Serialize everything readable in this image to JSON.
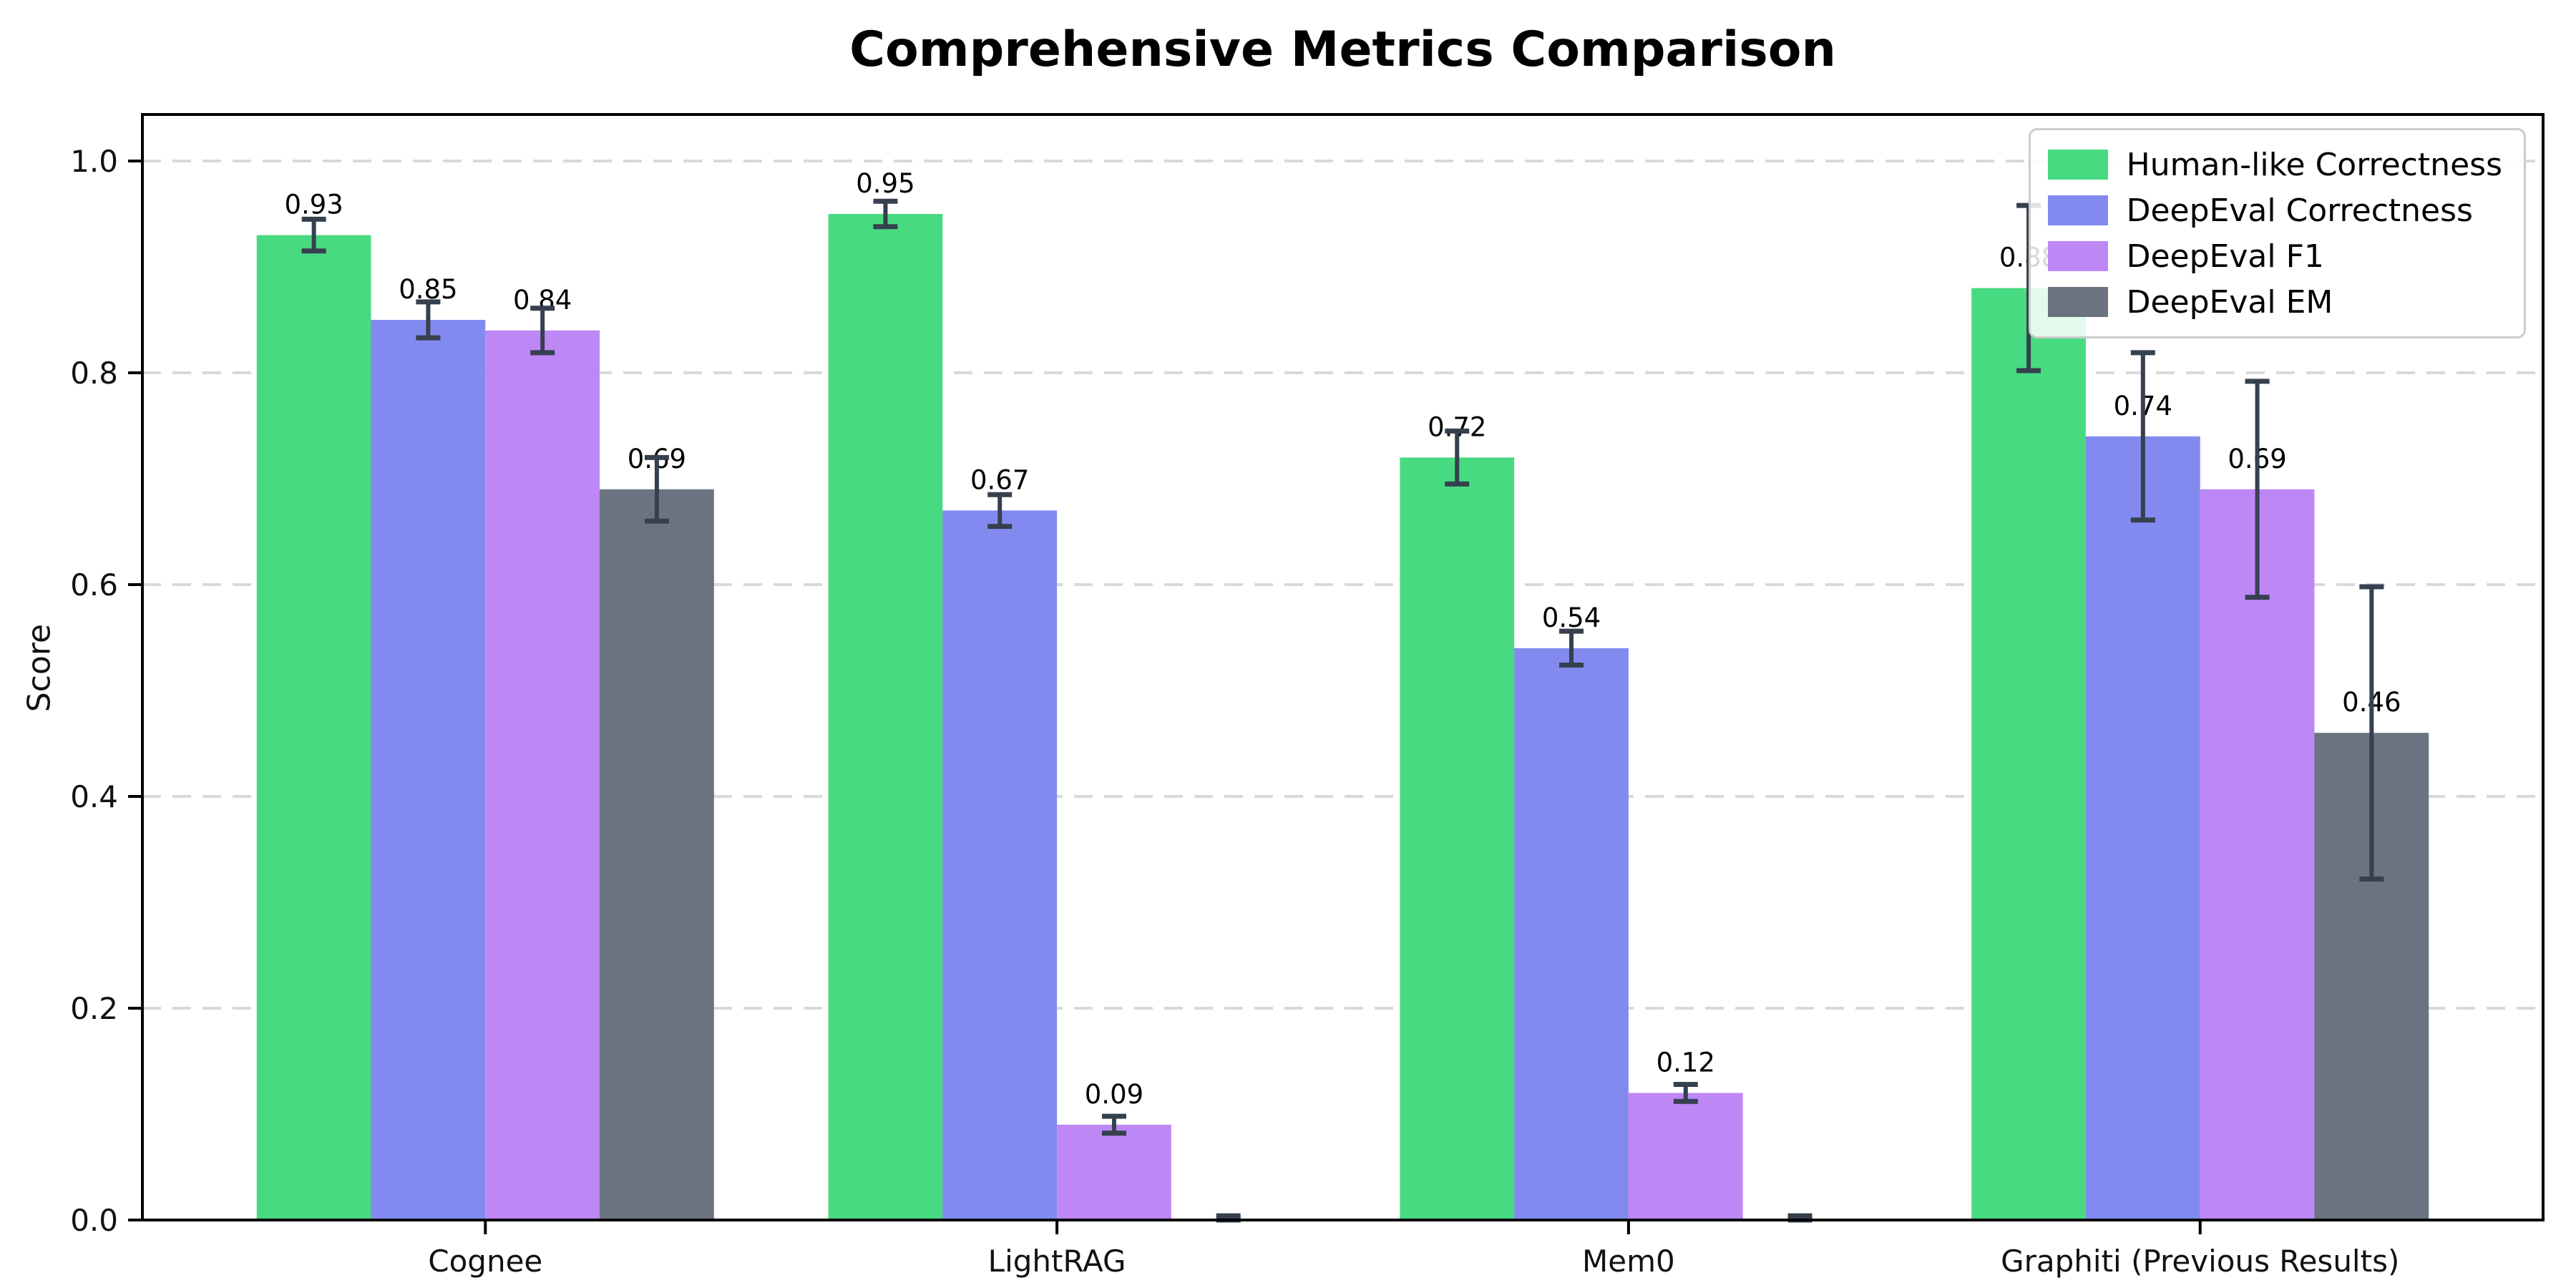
{
  "title": "Comprehensive Metrics Comparison",
  "chart_data": {
    "type": "bar",
    "title": "Comprehensive Metrics Comparison",
    "xlabel": "",
    "ylabel": "Score",
    "categories": [
      "Cognee",
      "LightRAG",
      "Mem0",
      "Graphiti (Previous Results)"
    ],
    "series": [
      {
        "name": "Human-like Correctness",
        "color": "#47da81",
        "values": [
          0.93,
          0.95,
          0.72,
          0.88
        ],
        "errors": [
          0.015,
          0.012,
          0.025,
          0.078
        ],
        "labels": [
          "0.93",
          "0.95",
          "0.72",
          "0.88"
        ]
      },
      {
        "name": "DeepEval Correctness",
        "color": "#828af0",
        "values": [
          0.85,
          0.67,
          0.54,
          0.74
        ],
        "errors": [
          0.017,
          0.015,
          0.016,
          0.079
        ],
        "labels": [
          "0.85",
          "0.67",
          "0.54",
          "0.74"
        ]
      },
      {
        "name": "DeepEval F1",
        "color": "#bd87f6",
        "values": [
          0.84,
          0.09,
          0.12,
          0.69
        ],
        "errors": [
          0.021,
          0.008,
          0.008,
          0.102
        ],
        "labels": [
          "0.84",
          "0.09",
          "0.12",
          "0.69"
        ]
      },
      {
        "name": "DeepEval EM",
        "color": "#6b7380",
        "values": [
          0.69,
          0.0,
          0.0,
          0.46
        ],
        "errors": [
          0.03,
          0.004,
          0.004,
          0.138
        ],
        "labels": [
          "0.69",
          "",
          "",
          "0.46"
        ]
      }
    ],
    "y_ticks": [
      "0.0",
      "0.2",
      "0.4",
      "0.6",
      "0.8",
      "1.0"
    ],
    "ylim": [
      0,
      1.044
    ],
    "grid": "horizontal dashed",
    "legend_position": "upper right",
    "colors": {
      "error_bar": "#36404f",
      "grid_line": "#d9d9d9",
      "axis_line": "#000000",
      "tick_label": "#111111",
      "bar_label": "#000000"
    }
  }
}
